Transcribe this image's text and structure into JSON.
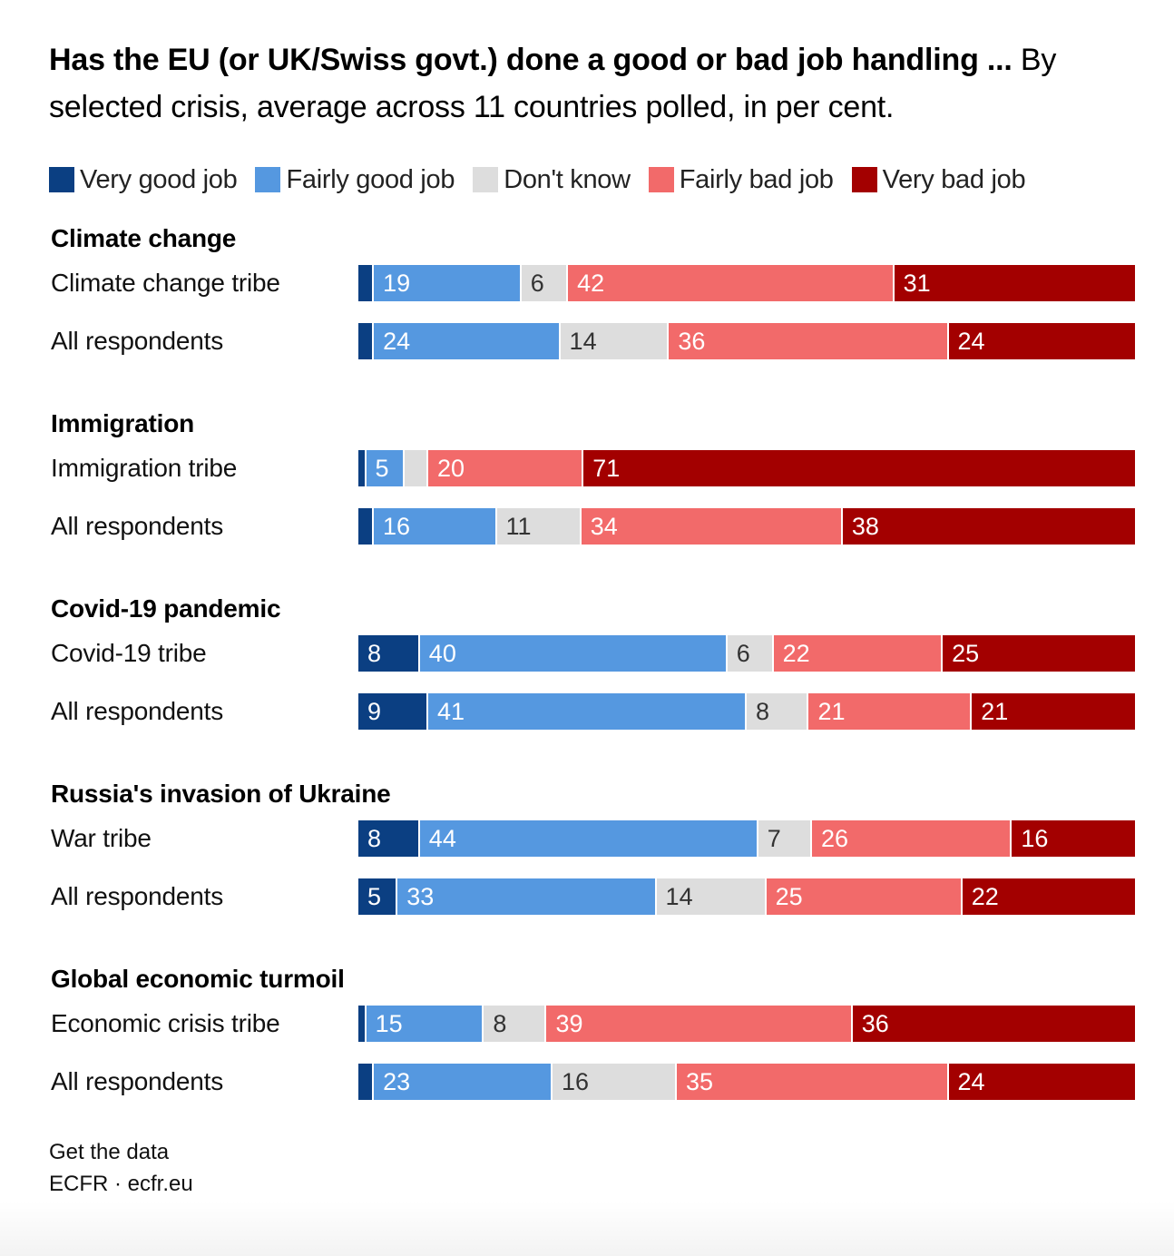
{
  "title": {
    "bold": "Has the EU (or UK/Swiss govt.) done a good or bad job handling ...",
    "rest": " By selected crisis, average across 11 countries polled, in per cent."
  },
  "colors": {
    "very_good": "#0b3f82",
    "fairly_good": "#5598e0",
    "dont_know": "#dddddd",
    "fairly_bad": "#f26a6a",
    "very_bad": "#a30000"
  },
  "footer": {
    "link": "Get the data",
    "source": "ECFR · ecfr.eu"
  },
  "chart_data": {
    "type": "bar",
    "orientation": "horizontal",
    "stacked": true,
    "unit": "per cent",
    "legend": [
      "Very good job",
      "Fairly good job",
      "Don't know",
      "Fairly bad job",
      "Very bad job"
    ],
    "groups": [
      {
        "title": "Climate change",
        "rows": [
          {
            "label": "Climate change tribe",
            "values": [
              2,
              19,
              6,
              42,
              31
            ],
            "labels": [
              "",
              "19",
              "6",
              "42",
              "31"
            ]
          },
          {
            "label": "All respondents",
            "values": [
              2,
              24,
              14,
              36,
              24
            ],
            "labels": [
              "",
              "24",
              "14",
              "36",
              "24"
            ]
          }
        ]
      },
      {
        "title": "Immigration",
        "rows": [
          {
            "label": "Immigration tribe",
            "values": [
              1,
              5,
              3,
              20,
              71
            ],
            "labels": [
              "",
              "5",
              "",
              "20",
              "71"
            ]
          },
          {
            "label": "All respondents",
            "values": [
              2,
              16,
              11,
              34,
              38
            ],
            "labels": [
              "",
              "16",
              "11",
              "34",
              "38"
            ]
          }
        ]
      },
      {
        "title": "Covid-19 pandemic",
        "rows": [
          {
            "label": "Covid-19 tribe",
            "values": [
              8,
              40,
              6,
              22,
              25
            ],
            "labels": [
              "8",
              "40",
              "6",
              "22",
              "25"
            ]
          },
          {
            "label": "All respondents",
            "values": [
              9,
              41,
              8,
              21,
              21
            ],
            "labels": [
              "9",
              "41",
              "8",
              "21",
              "21"
            ]
          }
        ]
      },
      {
        "title": "Russia's invasion of Ukraine",
        "rows": [
          {
            "label": "War tribe",
            "values": [
              8,
              44,
              7,
              26,
              16
            ],
            "labels": [
              "8",
              "44",
              "7",
              "26",
              "16"
            ]
          },
          {
            "label": "All respondents",
            "values": [
              5,
              33,
              14,
              25,
              22
            ],
            "labels": [
              "5",
              "33",
              "14",
              "25",
              "22"
            ]
          }
        ]
      },
      {
        "title": "Global economic turmoil",
        "rows": [
          {
            "label": "Economic crisis tribe",
            "values": [
              1,
              15,
              8,
              39,
              36
            ],
            "labels": [
              "",
              "15",
              "8",
              "39",
              "36"
            ]
          },
          {
            "label": "All respondents",
            "values": [
              2,
              23,
              16,
              35,
              24
            ],
            "labels": [
              "",
              "23",
              "16",
              "35",
              "24"
            ]
          }
        ]
      }
    ]
  }
}
